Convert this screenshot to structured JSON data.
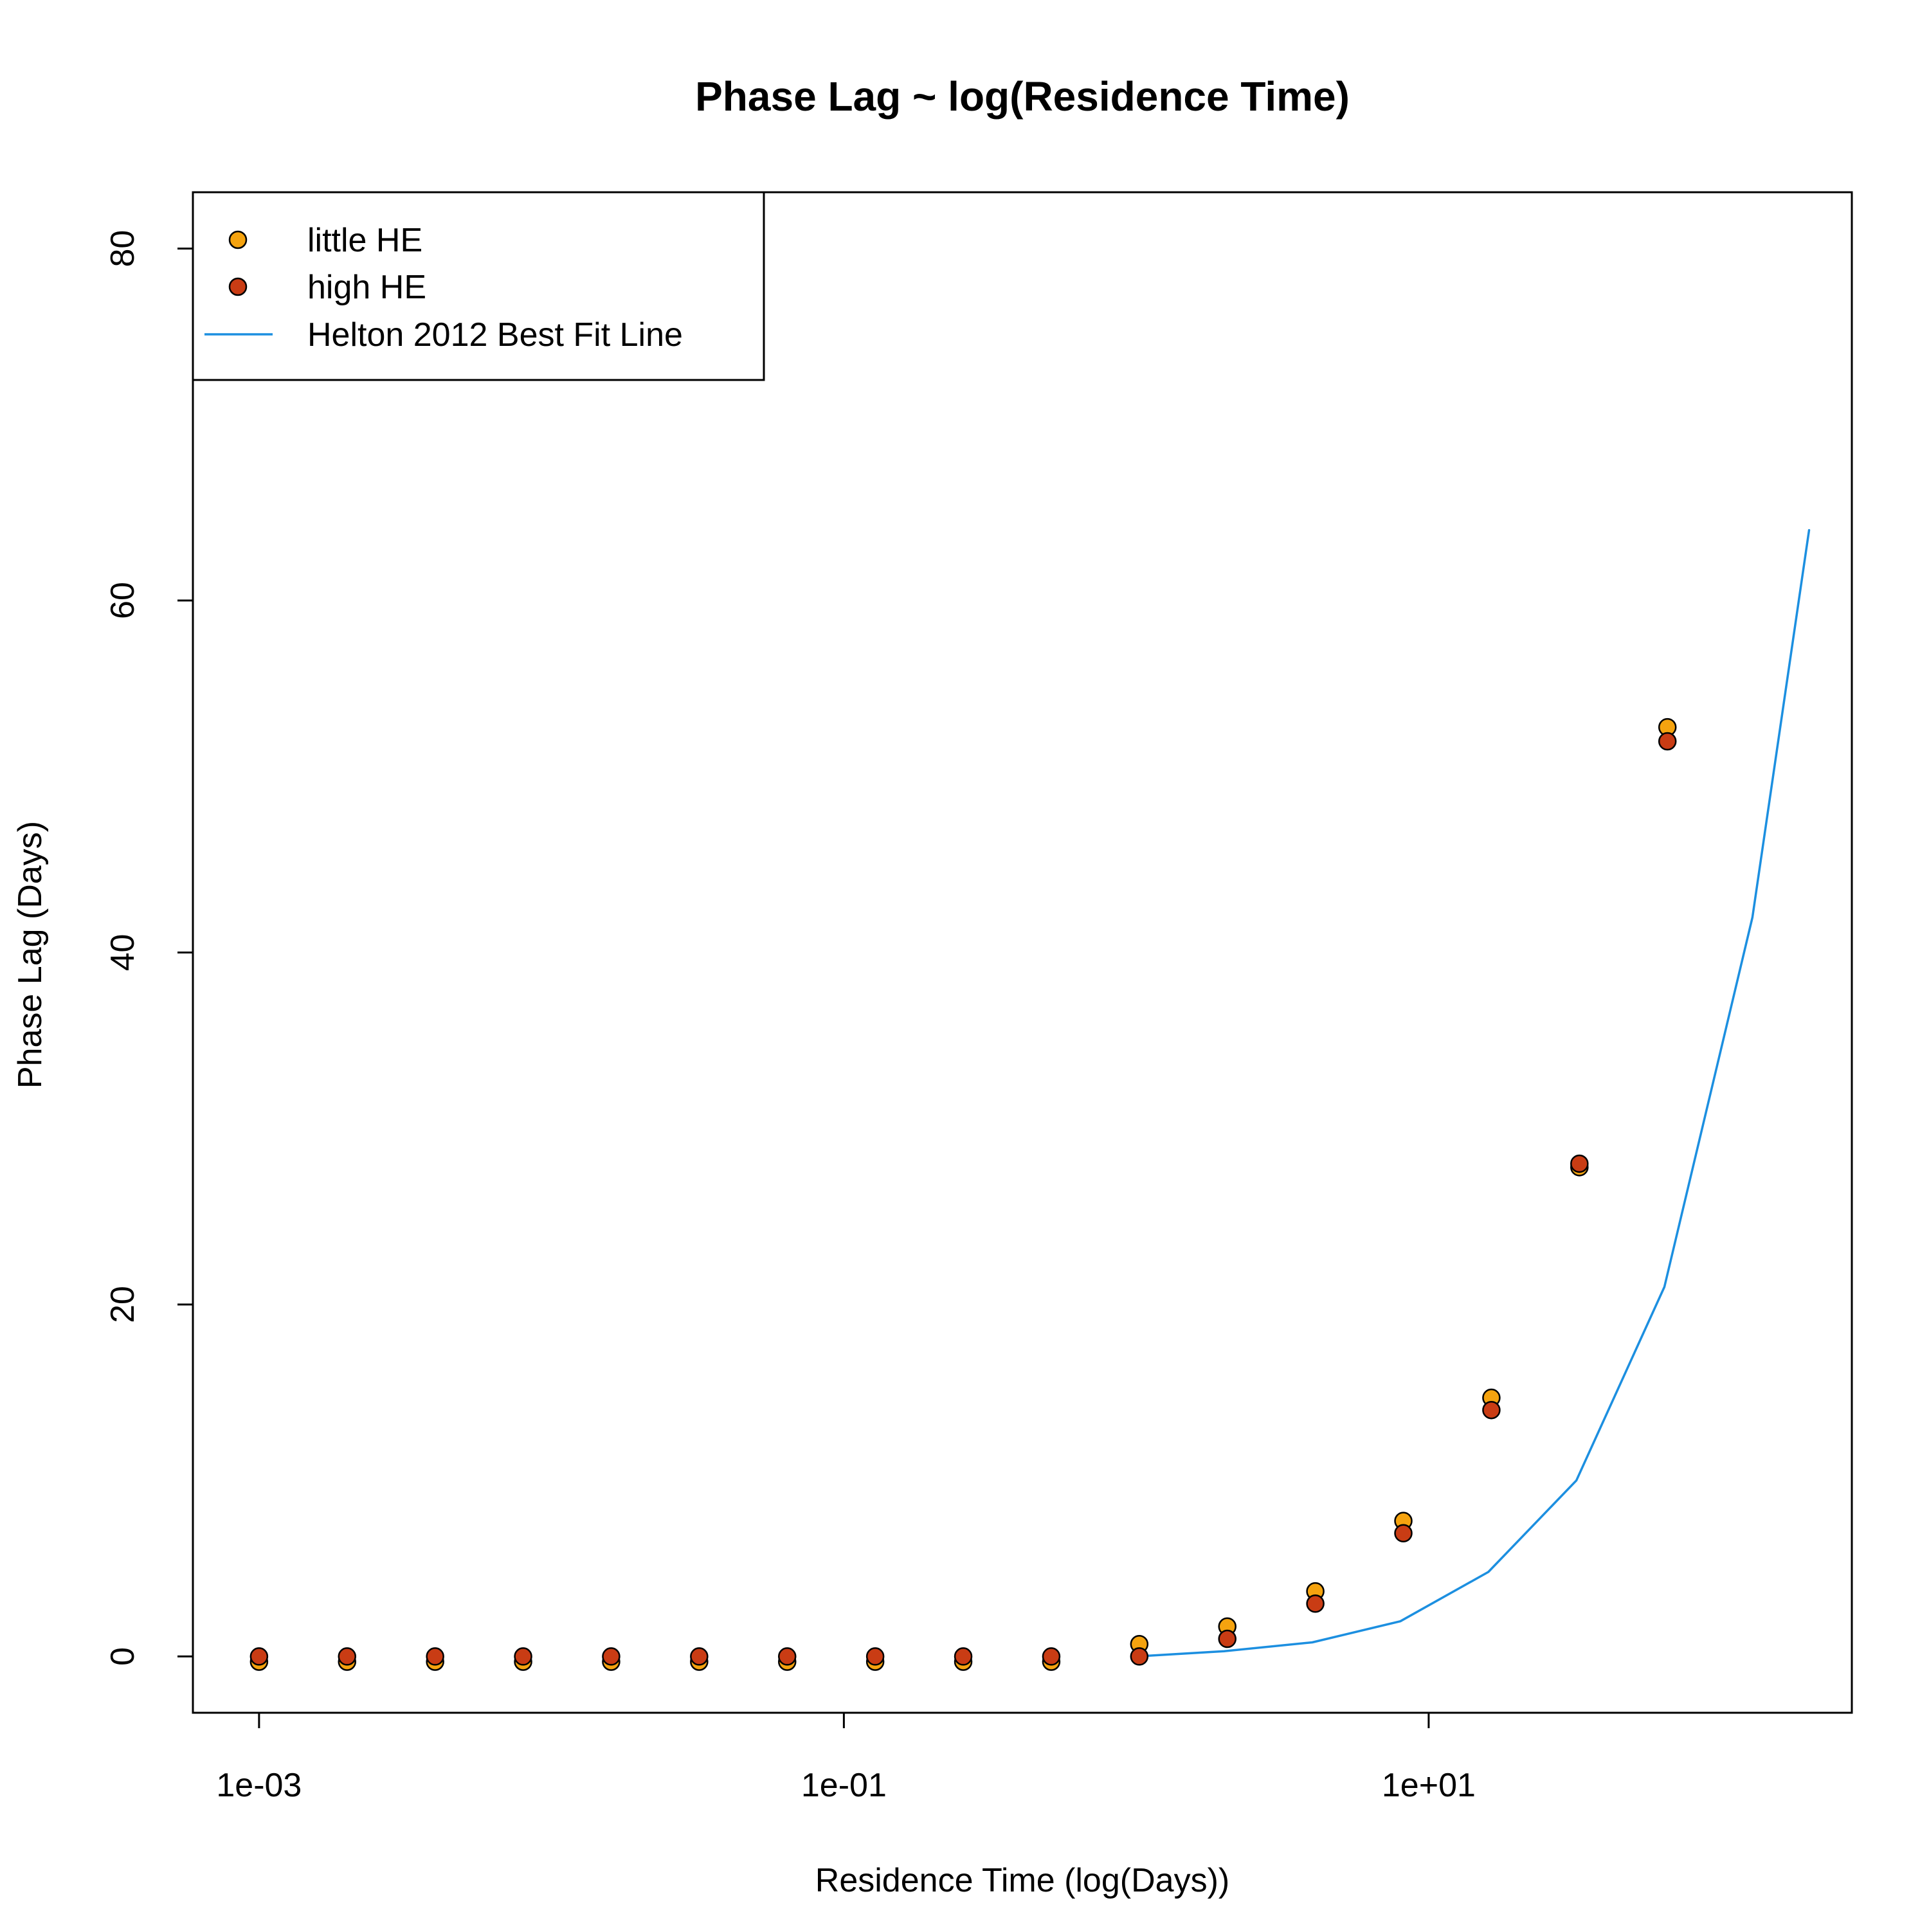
{
  "chart_data": {
    "type": "scatter",
    "title": "Phase Lag ~ log(Residence Time)",
    "xlabel": "Residence Time (log(Days))",
    "ylabel": "Phase Lag (Days)",
    "x_scale": "log10",
    "xlim": [
      0.000594,
      280
    ],
    "ylim": [
      -3.2,
      83.2
    ],
    "x_ticks": [
      {
        "value": 0.001,
        "label": "1e-03"
      },
      {
        "value": 0.1,
        "label": "1e-01"
      },
      {
        "value": 10,
        "label": "1e+01"
      }
    ],
    "y_ticks": [
      {
        "value": 0,
        "label": "0"
      },
      {
        "value": 20,
        "label": "20"
      },
      {
        "value": 40,
        "label": "40"
      },
      {
        "value": 60,
        "label": "60"
      },
      {
        "value": 80,
        "label": "80"
      }
    ],
    "grid": false,
    "legend_position": "top-left",
    "legend": [
      {
        "label": "little HE",
        "kind": "point",
        "color": "#F5A30F"
      },
      {
        "label": "high HE",
        "kind": "point",
        "color": "#C93C14"
      },
      {
        "label": "Helton 2012 Best Fit Line",
        "kind": "line",
        "color": "#1C8FE0"
      }
    ],
    "series": [
      {
        "name": "little HE",
        "kind": "points",
        "color": "#F5A30F",
        "x": [
          0.001,
          0.002,
          0.004,
          0.008,
          0.016,
          0.032,
          0.064,
          0.128,
          0.256,
          0.512,
          1.024,
          2.048,
          4.096,
          8.192,
          16.384,
          32.768,
          65.536
        ],
        "y": [
          -0.3,
          -0.3,
          -0.3,
          -0.3,
          -0.3,
          -0.3,
          -0.3,
          -0.3,
          -0.3,
          -0.3,
          0.7,
          1.7,
          3.7,
          7.7,
          14.7,
          27.8,
          52.8
        ]
      },
      {
        "name": "high HE",
        "kind": "points",
        "color": "#C93C14",
        "x": [
          0.001,
          0.002,
          0.004,
          0.008,
          0.016,
          0.032,
          0.064,
          0.128,
          0.256,
          0.512,
          1.024,
          2.048,
          4.096,
          8.192,
          16.384,
          32.768,
          65.536
        ],
        "y": [
          0,
          0,
          0,
          0,
          0,
          0,
          0,
          0,
          0,
          0,
          0,
          1,
          3,
          7,
          14,
          28,
          52
        ]
      },
      {
        "name": "Helton 2012 Best Fit Line",
        "kind": "line",
        "color": "#1C8FE0",
        "x": [
          1,
          2,
          4,
          8,
          16,
          32,
          64,
          128,
          200
        ],
        "y": [
          0,
          0.3,
          0.8,
          2,
          4.8,
          10,
          21,
          42,
          64
        ]
      }
    ]
  }
}
